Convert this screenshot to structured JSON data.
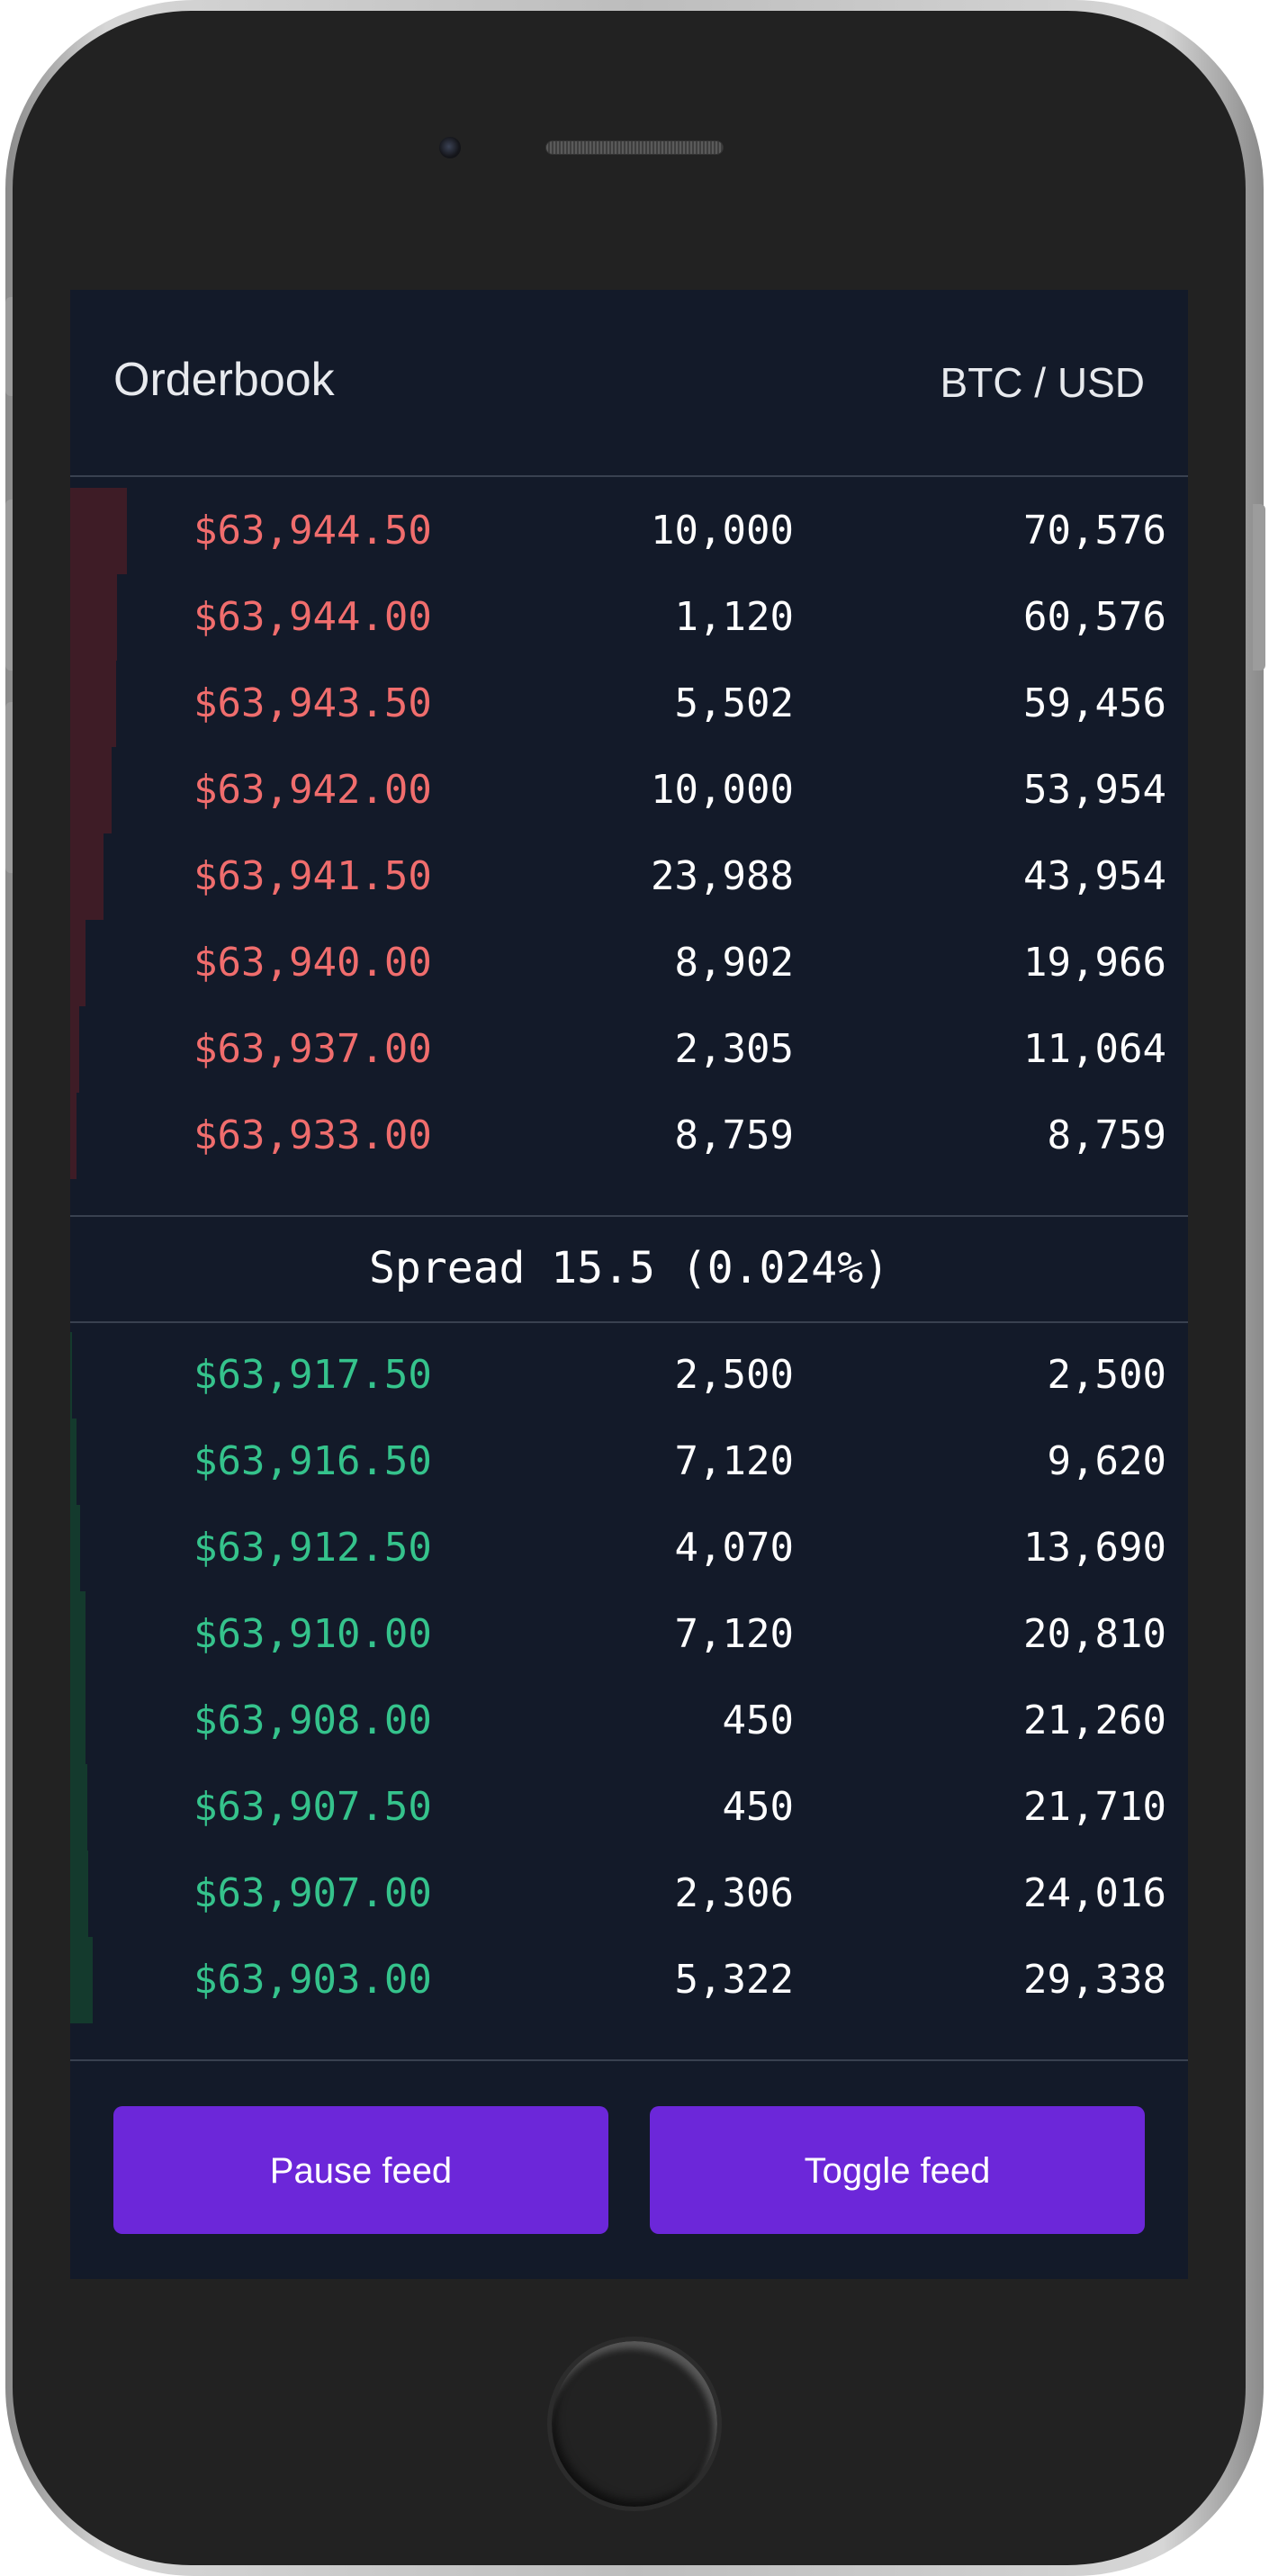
{
  "header": {
    "title": "Orderbook",
    "pair": "BTC / USD"
  },
  "asks": [
    {
      "price": "$63,944.50",
      "size": "10,000",
      "total": "70,576",
      "depth_percent": 5.1
    },
    {
      "price": "$63,944.00",
      "size": "1,120",
      "total": "60,576",
      "depth_percent": 4.2
    },
    {
      "price": "$63,943.50",
      "size": "5,502",
      "total": "59,456",
      "depth_percent": 4.1
    },
    {
      "price": "$63,942.00",
      "size": "10,000",
      "total": "53,954",
      "depth_percent": 3.7
    },
    {
      "price": "$63,941.50",
      "size": "23,988",
      "total": "43,954",
      "depth_percent": 3.0
    },
    {
      "price": "$63,940.00",
      "size": "8,902",
      "total": "19,966",
      "depth_percent": 1.4
    },
    {
      "price": "$63,937.00",
      "size": "2,305",
      "total": "11,064",
      "depth_percent": 0.8
    },
    {
      "price": "$63,933.00",
      "size": "8,759",
      "total": "8,759",
      "depth_percent": 0.6
    }
  ],
  "spread": {
    "label": "Spread 15.5 (0.024%)"
  },
  "bids": [
    {
      "price": "$63,917.50",
      "size": "2,500",
      "total": "2,500",
      "depth_percent": 0.2
    },
    {
      "price": "$63,916.50",
      "size": "7,120",
      "total": "9,620",
      "depth_percent": 0.6
    },
    {
      "price": "$63,912.50",
      "size": "4,070",
      "total": "13,690",
      "depth_percent": 0.9
    },
    {
      "price": "$63,910.00",
      "size": "7,120",
      "total": "20,810",
      "depth_percent": 1.4
    },
    {
      "price": "$63,908.00",
      "size": "450",
      "total": "21,260",
      "depth_percent": 1.4
    },
    {
      "price": "$63,907.50",
      "size": "450",
      "total": "21,710",
      "depth_percent": 1.5
    },
    {
      "price": "$63,907.00",
      "size": "2,306",
      "total": "24,016",
      "depth_percent": 1.6
    },
    {
      "price": "$63,903.00",
      "size": "5,322",
      "total": "29,338",
      "depth_percent": 2.0
    }
  ],
  "footer": {
    "pause_label": "Pause feed",
    "toggle_label": "Toggle feed"
  },
  "colors": {
    "background": "#131a29",
    "ask_price": "#f06d6d",
    "bid_price": "#35c38c",
    "ask_depth": "#3e1c26",
    "bid_depth": "#143a2d",
    "button": "#6c27d9"
  }
}
